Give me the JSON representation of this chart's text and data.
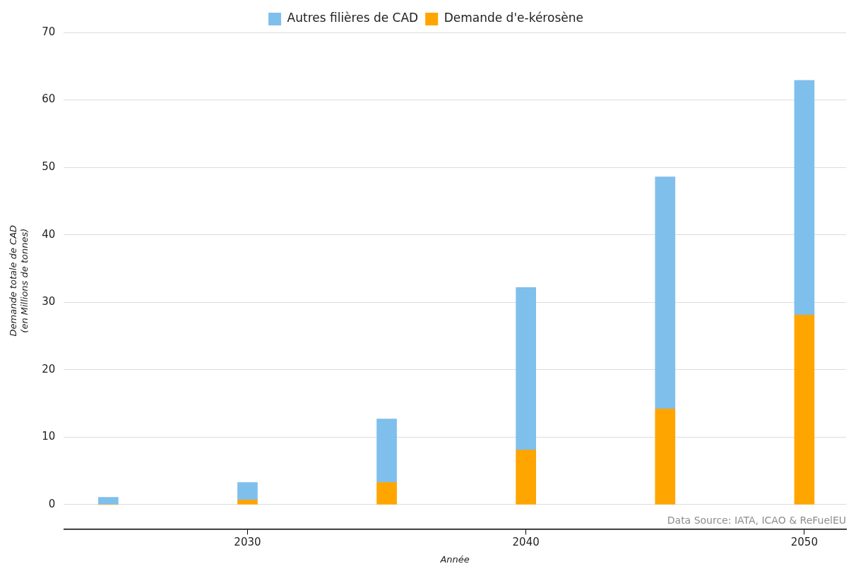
{
  "chart_data": {
    "type": "bar",
    "stacked": true,
    "xlabel": "Année",
    "ylabel": "Demande totale de CAD\n(en Millions de tonnes)",
    "x": [
      2025,
      2030,
      2035,
      2040,
      2045,
      2050
    ],
    "series": [
      {
        "name": "Demande d'e-kérosène",
        "color": "#ffa500",
        "values": [
          0,
          0.7,
          3.3,
          8.1,
          14.2,
          28.1
        ]
      },
      {
        "name": "Autres filières de CAD",
        "color": "#7fbfec",
        "values": [
          1.1,
          2.6,
          9.4,
          24.1,
          34.4,
          34.8
        ]
      }
    ],
    "xlim": [
      2023.4,
      2051.5
    ],
    "xticks": [
      2030,
      2040,
      2050
    ],
    "ylim": [
      -3.6,
      70
    ],
    "yticks": [
      0,
      10,
      20,
      30,
      40,
      50,
      60,
      70
    ],
    "grid": "y",
    "legend": "top",
    "annotations": [
      "Data Source: IATA, ICAO & ReFuelEU"
    ]
  }
}
